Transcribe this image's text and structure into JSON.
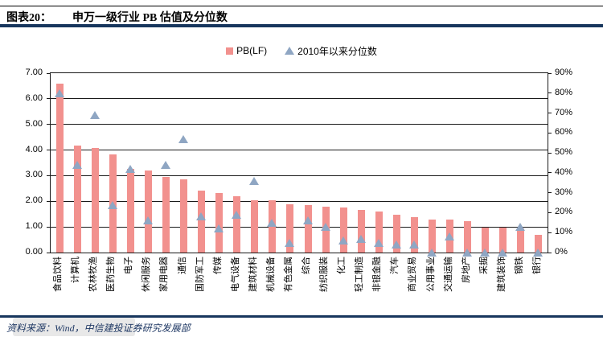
{
  "header": {
    "fig_label": "图表20：",
    "title": "申万一级行业 PB 估值及分位数"
  },
  "colors": {
    "bar": "#F2918E",
    "triangle": "#8FA6C3",
    "rule_navy": "#17365D",
    "grid": "#1A1A1A"
  },
  "chart_data": {
    "type": "combo",
    "title": "申万一级行业 PB 估值及分位数",
    "categories": [
      "食品饮料",
      "计算机",
      "农林牧渔",
      "医药生物",
      "电子",
      "休闲服务",
      "家用电器",
      "通信",
      "国防军工",
      "传媒",
      "电气设备",
      "建筑材料",
      "机械设备",
      "有色金属",
      "综合",
      "纺织服装",
      "化工",
      "轻工制造",
      "非银金融",
      "汽车",
      "商业贸易",
      "公用事业",
      "交通运输",
      "房地产",
      "采掘",
      "建筑装饰",
      "钢铁",
      "银行"
    ],
    "series": [
      {
        "name": "PB(LF)",
        "type": "bar",
        "axis": "left",
        "values": [
          6.58,
          4.17,
          4.08,
          3.83,
          3.27,
          3.2,
          2.95,
          2.86,
          2.42,
          2.32,
          2.2,
          2.04,
          2.03,
          1.89,
          1.85,
          1.79,
          1.77,
          1.66,
          1.61,
          1.48,
          1.39,
          1.3,
          1.28,
          1.21,
          0.98,
          0.96,
          0.95,
          0.7
        ]
      },
      {
        "name": "2010年以来分位数",
        "type": "scatter",
        "marker": "triangle",
        "axis": "right",
        "values_percent": [
          80,
          44,
          69,
          24,
          42,
          16,
          44,
          57,
          18,
          12,
          19,
          36,
          15,
          5,
          16,
          13,
          6,
          7,
          5,
          4,
          4,
          0,
          8,
          0,
          0,
          0,
          13,
          0
        ]
      }
    ],
    "left_axis": {
      "min": 0,
      "max": 7,
      "ticks": [
        "7.00",
        "6.00",
        "5.00",
        "4.00",
        "3.00",
        "2.00",
        "1.00",
        "0.00"
      ]
    },
    "right_axis": {
      "min": 0,
      "max": 90,
      "ticks": [
        "90%",
        "80%",
        "70%",
        "60%",
        "50%",
        "40%",
        "30%",
        "20%",
        "10%",
        "0%"
      ]
    },
    "grid": "horizontal-only",
    "legend_position": "top-center"
  },
  "footer": {
    "source": "资料来源：Wind，中信建投证券研究发展部"
  }
}
